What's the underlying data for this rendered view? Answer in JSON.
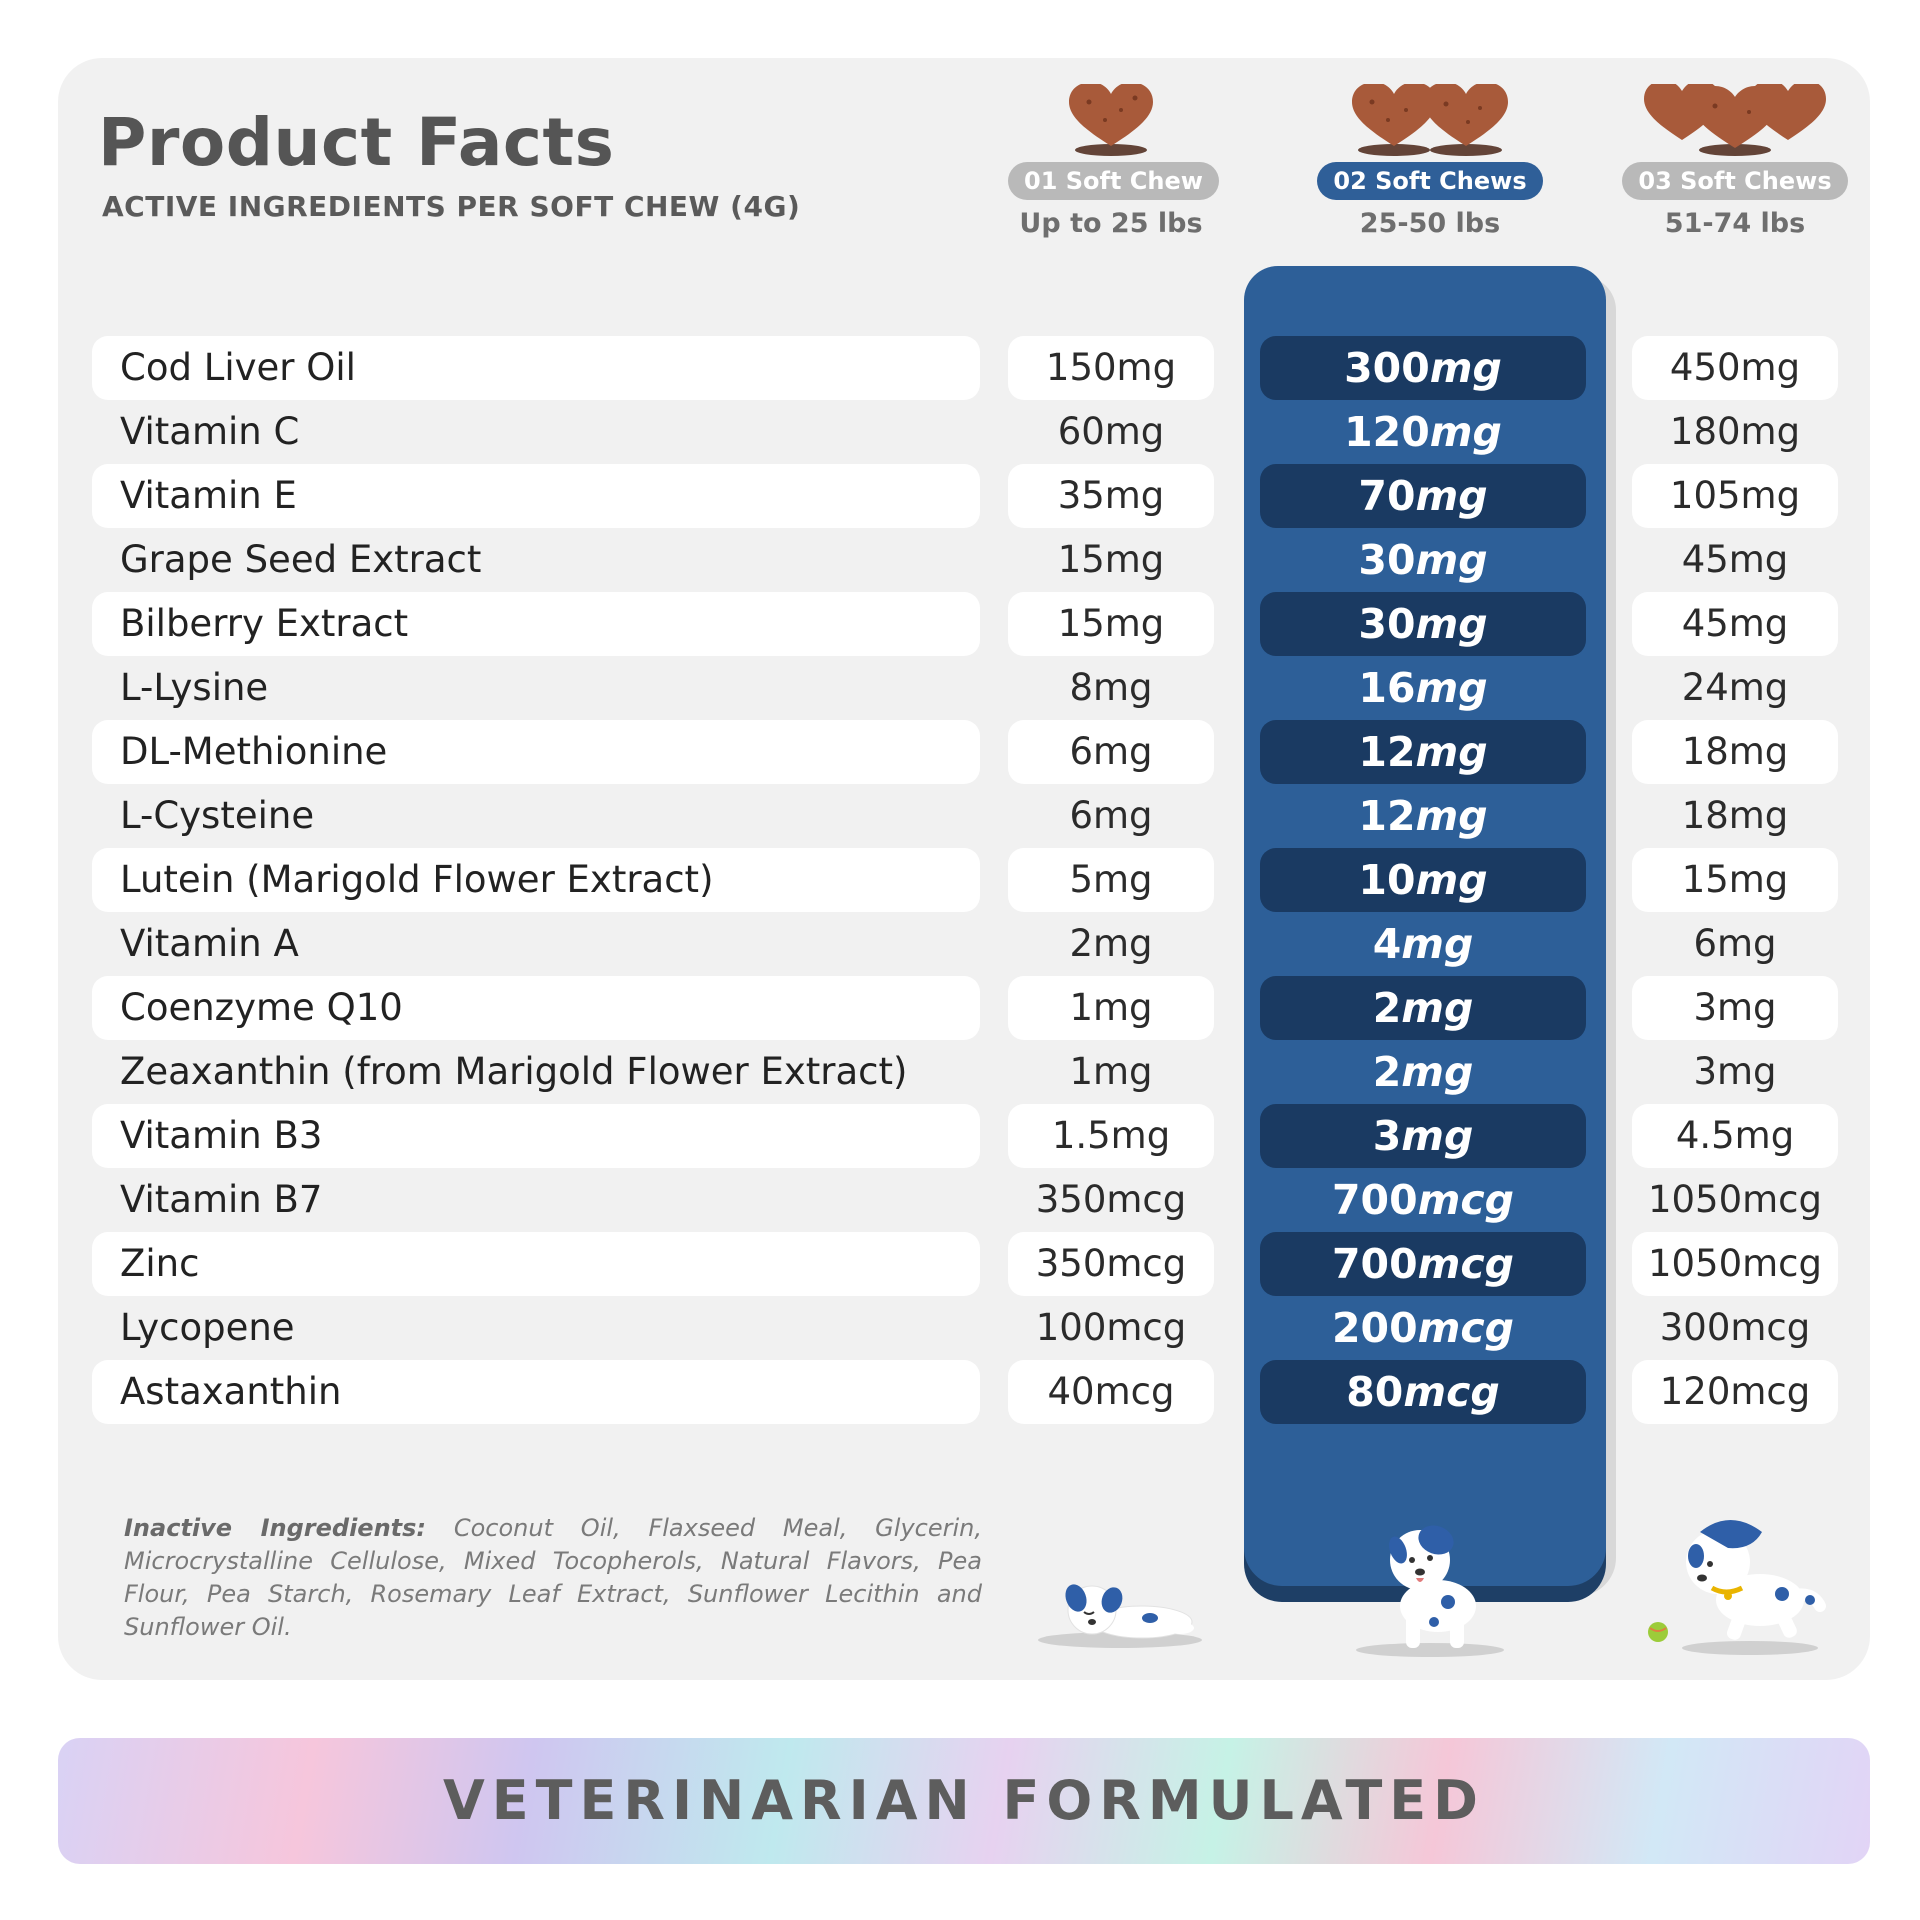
{
  "header": {
    "title": "Product Facts",
    "subtitle": "ACTIVE INGREDIENTS PER SOFT CHEW (4G)"
  },
  "columns": [
    {
      "chews_label": "01 Soft Chew",
      "weight_label": "Up to 25 lbs",
      "chew_count": 1,
      "active": false
    },
    {
      "chews_label": "02 Soft Chews",
      "weight_label": "25-50 lbs",
      "chew_count": 2,
      "active": true
    },
    {
      "chews_label": "03 Soft Chews",
      "weight_label": "51-74 lbs",
      "chew_count": 3,
      "active": false
    }
  ],
  "ingredients": [
    {
      "name": "Cod Liver Oil",
      "small": "150mg",
      "medium_num": "300",
      "medium_unit": "mg",
      "large": "450mg"
    },
    {
      "name": "Vitamin C",
      "small": "60mg",
      "medium_num": "120",
      "medium_unit": "mg",
      "large": "180mg"
    },
    {
      "name": "Vitamin E",
      "small": "35mg",
      "medium_num": "70",
      "medium_unit": "mg",
      "large": "105mg"
    },
    {
      "name": "Grape Seed Extract",
      "small": "15mg",
      "medium_num": "30",
      "medium_unit": "mg",
      "large": "45mg"
    },
    {
      "name": "Bilberry Extract",
      "small": "15mg",
      "medium_num": "30",
      "medium_unit": "mg",
      "large": "45mg"
    },
    {
      "name": "L-Lysine",
      "small": "8mg",
      "medium_num": "16",
      "medium_unit": "mg",
      "large": "24mg"
    },
    {
      "name": "DL-Methionine",
      "small": "6mg",
      "medium_num": "12",
      "medium_unit": "mg",
      "large": "18mg"
    },
    {
      "name": "L-Cysteine",
      "small": "6mg",
      "medium_num": "12",
      "medium_unit": "mg",
      "large": "18mg"
    },
    {
      "name": "Lutein (Marigold Flower Extract)",
      "small": "5mg",
      "medium_num": "10",
      "medium_unit": "mg",
      "large": "15mg"
    },
    {
      "name": "Vitamin A",
      "small": "2mg",
      "medium_num": "4",
      "medium_unit": "mg",
      "large": "6mg"
    },
    {
      "name": "Coenzyme Q10",
      "small": "1mg",
      "medium_num": "2",
      "medium_unit": "mg",
      "large": "3mg"
    },
    {
      "name": "Zeaxanthin (from Marigold Flower Extract)",
      "small": "1mg",
      "medium_num": "2",
      "medium_unit": "mg",
      "large": "3mg"
    },
    {
      "name": "Vitamin B3",
      "small": "1.5mg",
      "medium_num": "3",
      "medium_unit": "mg",
      "large": "4.5mg"
    },
    {
      "name": "Vitamin B7",
      "small": "350mcg",
      "medium_num": "700",
      "medium_unit": "mcg",
      "large": "1050mcg"
    },
    {
      "name": "Zinc",
      "small": "350mcg",
      "medium_num": "700",
      "medium_unit": "mcg",
      "large": "1050mcg"
    },
    {
      "name": "Lycopene",
      "small": "100mcg",
      "medium_num": "200",
      "medium_unit": "mcg",
      "large": "300mcg"
    },
    {
      "name": "Astaxanthin",
      "small": "40mcg",
      "medium_num": "80",
      "medium_unit": "mcg",
      "large": "120mcg"
    }
  ],
  "inactive": {
    "label": "Inactive Ingredients:",
    "text": "Coconut Oil, Flaxseed Meal, Glycerin, Microcrystalline Cellulose, Mixed Tocopherols, Natural Flavors, Pea Flour, Pea Starch, Rosemary Leaf Extract, Sunflower Lecithin and Sunflower Oil."
  },
  "banner": {
    "text": "VETERINARIAN FORMULATED"
  },
  "colors": {
    "highlight": "#2d5f98",
    "highlight_cell": "#1a3a62",
    "chew": "#a85a3a",
    "dog_spot": "#2f5fa8"
  },
  "icons": [
    "heart-chew-icon",
    "sleeping-puppy-icon",
    "standing-puppy-icon",
    "running-puppy-icon"
  ]
}
